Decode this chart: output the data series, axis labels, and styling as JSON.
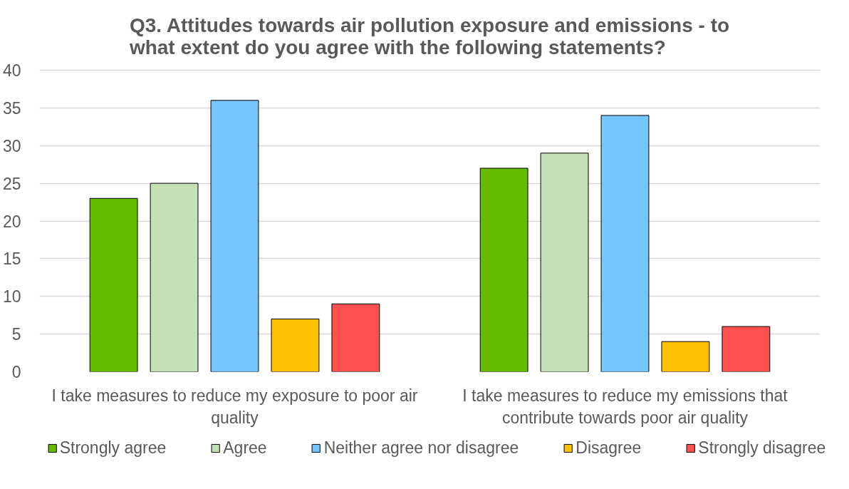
{
  "chart_data": {
    "type": "bar",
    "title": "Q3. Attitudes towards air pollution exposure and emissions - to what extent do you agree with the following statements?",
    "categories": [
      "I take measures to reduce my exposure to poor air quality",
      "I take measures to reduce my emissions that contribute towards poor air quality"
    ],
    "series": [
      {
        "name": "Strongly agree",
        "color": "#66bb00",
        "values": [
          23,
          27
        ]
      },
      {
        "name": "Agree",
        "color": "#c5e0b4",
        "values": [
          25,
          29
        ]
      },
      {
        "name": "Neither agree nor disagree",
        "color": "#75c5ff",
        "values": [
          36,
          34
        ]
      },
      {
        "name": "Disagree",
        "color": "#ffc000",
        "values": [
          7,
          4
        ]
      },
      {
        "name": "Strongly disagree",
        "color": "#ff5050",
        "values": [
          9,
          6
        ]
      }
    ],
    "ylim": [
      0,
      40
    ],
    "yticks": [
      0,
      5,
      10,
      15,
      20,
      25,
      30,
      35,
      40
    ],
    "grid": "y",
    "legend": "bottom"
  }
}
